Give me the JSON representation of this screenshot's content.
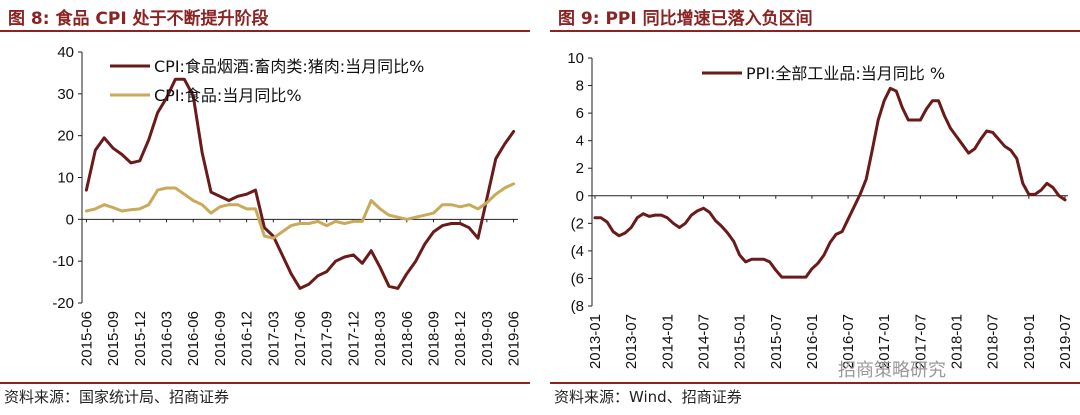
{
  "figure1": {
    "title": "图 8:  食品 CPI 处于不断提升阶段",
    "source": "资料来源：国家统计局、招商证券"
  },
  "figure2": {
    "title": "图 9:  PPI 同比增速已落入负区间",
    "source": "资料来源：Wind、招商证券"
  },
  "watermark": "招商策略研究",
  "colors": {
    "title": "#8b2323",
    "pork": "#6b1a1a",
    "food": "#c9a95a",
    "ppi": "#6b1a1a",
    "negative_tick": "#c0392b"
  },
  "chart_data": [
    {
      "type": "line",
      "title": "图 8:  食品 CPI 处于不断提升阶段",
      "xlabel": "",
      "ylabel": "",
      "ylim": [
        -20,
        40
      ],
      "yticks": [
        -20,
        -10,
        0,
        10,
        20,
        30,
        40
      ],
      "x_tick_labels": [
        "2015-06",
        "2015-09",
        "2015-12",
        "2016-03",
        "2016-06",
        "2016-09",
        "2016-12",
        "2017-03",
        "2017-06",
        "2017-09",
        "2017-12",
        "2018-03",
        "2018-06",
        "2018-09",
        "2018-12",
        "2019-03",
        "2019-06"
      ],
      "grid": false,
      "legend_position": "top",
      "x": [
        "2015-06",
        "2015-07",
        "2015-08",
        "2015-09",
        "2015-10",
        "2015-11",
        "2015-12",
        "2016-01",
        "2016-02",
        "2016-03",
        "2016-04",
        "2016-05",
        "2016-06",
        "2016-07",
        "2016-08",
        "2016-09",
        "2016-10",
        "2016-11",
        "2016-12",
        "2017-01",
        "2017-02",
        "2017-03",
        "2017-04",
        "2017-05",
        "2017-06",
        "2017-07",
        "2017-08",
        "2017-09",
        "2017-10",
        "2017-11",
        "2017-12",
        "2018-01",
        "2018-02",
        "2018-03",
        "2018-04",
        "2018-05",
        "2018-06",
        "2018-07",
        "2018-08",
        "2018-09",
        "2018-10",
        "2018-11",
        "2018-12",
        "2019-01",
        "2019-02",
        "2019-03",
        "2019-04",
        "2019-05",
        "2019-06"
      ],
      "series": [
        {
          "name": "CPI:食品烟酒:畜肉类:猪肉:当月同比%",
          "values": [
            7,
            16.5,
            19.5,
            17,
            15.5,
            13.5,
            14,
            19,
            25.5,
            29,
            33.5,
            33.5,
            29.5,
            16,
            6.5,
            5.5,
            4.5,
            5.5,
            6,
            7,
            -2,
            -4,
            -8.5,
            -13,
            -16.5,
            -15.5,
            -13.5,
            -12.5,
            -10,
            -9,
            -8.5,
            -10.5,
            -7.5,
            -11.5,
            -16,
            -16.5,
            -13,
            -10,
            -6,
            -3,
            -1.5,
            -1,
            -1,
            -2,
            -4.5,
            5,
            14.5,
            18,
            21
          ]
        },
        {
          "name": "CPI:食品:当月同比%",
          "values": [
            2,
            2.5,
            3.5,
            2.8,
            2,
            2.3,
            2.5,
            3.5,
            7,
            7.5,
            7.5,
            6,
            4.5,
            3.5,
            1.5,
            3,
            3.5,
            3.5,
            2.5,
            2.5,
            -4,
            -4.5,
            -3,
            -1.5,
            -1,
            -1,
            -0.5,
            -1.5,
            -0.5,
            -1,
            -0.5,
            -0.5,
            4.5,
            2.5,
            1,
            0.5,
            0,
            0.5,
            1,
            1.5,
            3.5,
            3.5,
            3,
            3.5,
            2.5,
            4,
            6,
            7.5,
            8.5
          ]
        }
      ]
    },
    {
      "type": "line",
      "title": "图 9:  PPI 同比增速已落入负区间",
      "xlabel": "",
      "ylabel": "",
      "ylim": [
        -8,
        10
      ],
      "yticks": [
        10,
        8,
        6,
        4,
        2,
        0,
        -2,
        -4,
        -6,
        -8
      ],
      "ytick_labels": [
        "10",
        "8",
        "6",
        "4",
        "2",
        "0",
        "(2",
        "(4",
        "(6",
        "(8"
      ],
      "x_tick_labels": [
        "2013-01",
        "2013-07",
        "2014-01",
        "2014-07",
        "2015-01",
        "2015-07",
        "2016-01",
        "2016-07",
        "2017-01",
        "2017-07",
        "2018-01",
        "2018-07",
        "2019-01",
        "2019-07"
      ],
      "grid": false,
      "legend_position": "top",
      "x": [
        "2013-01",
        "2013-02",
        "2013-03",
        "2013-04",
        "2013-05",
        "2013-06",
        "2013-07",
        "2013-08",
        "2013-09",
        "2013-10",
        "2013-11",
        "2013-12",
        "2014-01",
        "2014-02",
        "2014-03",
        "2014-04",
        "2014-05",
        "2014-06",
        "2014-07",
        "2014-08",
        "2014-09",
        "2014-10",
        "2014-11",
        "2014-12",
        "2015-01",
        "2015-02",
        "2015-03",
        "2015-04",
        "2015-05",
        "2015-06",
        "2015-07",
        "2015-08",
        "2015-09",
        "2015-10",
        "2015-11",
        "2015-12",
        "2016-01",
        "2016-02",
        "2016-03",
        "2016-04",
        "2016-05",
        "2016-06",
        "2016-07",
        "2016-08",
        "2016-09",
        "2016-10",
        "2016-11",
        "2016-12",
        "2017-01",
        "2017-02",
        "2017-03",
        "2017-04",
        "2017-05",
        "2017-06",
        "2017-07",
        "2017-08",
        "2017-09",
        "2017-10",
        "2017-11",
        "2017-12",
        "2018-01",
        "2018-02",
        "2018-03",
        "2018-04",
        "2018-05",
        "2018-06",
        "2018-07",
        "2018-08",
        "2018-09",
        "2018-10",
        "2018-11",
        "2018-12",
        "2019-01",
        "2019-02",
        "2019-03",
        "2019-04",
        "2019-05",
        "2019-06",
        "2019-07"
      ],
      "series": [
        {
          "name": "PPI:全部工业品:当月同比 %",
          "values": [
            -1.6,
            -1.6,
            -1.9,
            -2.6,
            -2.9,
            -2.7,
            -2.3,
            -1.6,
            -1.3,
            -1.5,
            -1.4,
            -1.4,
            -1.6,
            -2,
            -2.3,
            -2,
            -1.4,
            -1.1,
            -0.9,
            -1.2,
            -1.8,
            -2.2,
            -2.7,
            -3.3,
            -4.3,
            -4.8,
            -4.6,
            -4.6,
            -4.6,
            -4.8,
            -5.4,
            -5.9,
            -5.9,
            -5.9,
            -5.9,
            -5.9,
            -5.3,
            -4.9,
            -4.3,
            -3.4,
            -2.8,
            -2.6,
            -1.7,
            -0.8,
            0.1,
            1.2,
            3.3,
            5.5,
            6.9,
            7.8,
            7.6,
            6.4,
            5.5,
            5.5,
            5.5,
            6.3,
            6.9,
            6.9,
            5.8,
            4.9,
            4.3,
            3.7,
            3.1,
            3.4,
            4.1,
            4.7,
            4.6,
            4.1,
            3.6,
            3.3,
            2.7,
            0.9,
            0.1,
            0.1,
            0.4,
            0.9,
            0.6,
            0,
            -0.3
          ]
        }
      ]
    }
  ]
}
